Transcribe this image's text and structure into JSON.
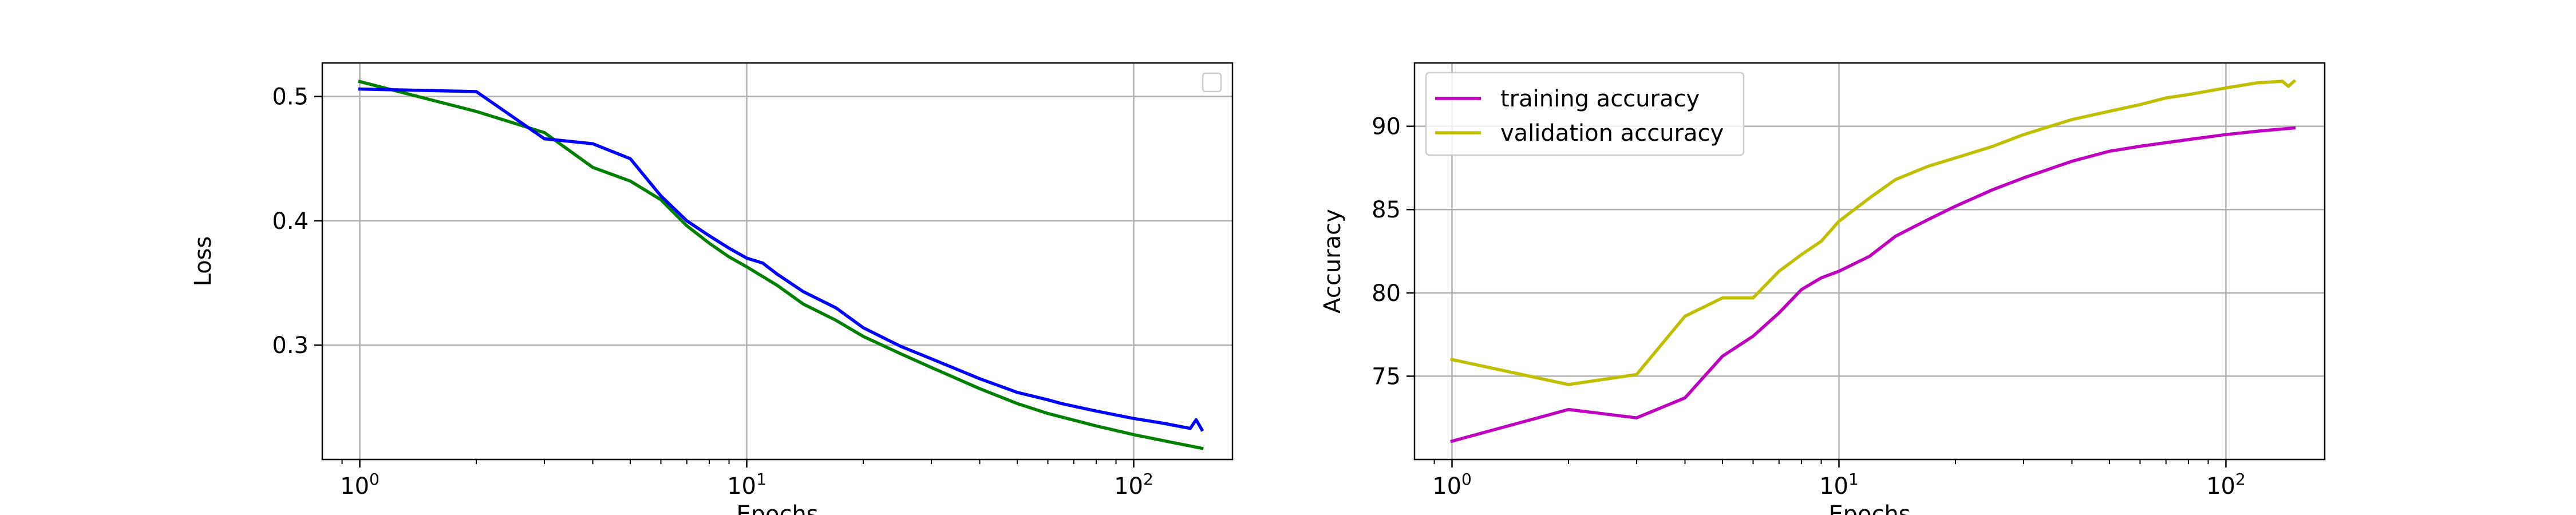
{
  "chart_data": [
    {
      "type": "line",
      "xscale": "log",
      "xlim": [
        0.8,
        180
      ],
      "ylim": [
        0.208,
        0.527
      ],
      "xticks": [
        1,
        10,
        100
      ],
      "xtick_labels": [
        {
          "base": "10",
          "exp": "0"
        },
        {
          "base": "10",
          "exp": "1"
        },
        {
          "base": "10",
          "exp": "2"
        }
      ],
      "yticks": [
        0.3,
        0.4,
        0.5
      ],
      "ytick_labels": [
        "0.3",
        "0.4",
        "0.5"
      ],
      "xlabel": "Epochs",
      "ylabel": "Loss",
      "grid": true,
      "legend": {
        "placement": "top-right",
        "entries": []
      },
      "series": [
        {
          "color": "#008000",
          "x": [
            1,
            2,
            3,
            4,
            5,
            6,
            7,
            8,
            9,
            10,
            12,
            14,
            17,
            20,
            25,
            30,
            40,
            50,
            60,
            80,
            100,
            120,
            150
          ],
          "y": [
            0.512,
            0.488,
            0.471,
            0.443,
            0.432,
            0.417,
            0.396,
            0.382,
            0.371,
            0.363,
            0.348,
            0.333,
            0.32,
            0.307,
            0.293,
            0.282,
            0.265,
            0.253,
            0.245,
            0.235,
            0.228,
            0.223,
            0.217
          ]
        },
        {
          "color": "#0000ff",
          "x": [
            1,
            2,
            3,
            4,
            5,
            6,
            7,
            8,
            9,
            10,
            11,
            12,
            14,
            17,
            20,
            25,
            30,
            40,
            50,
            60,
            65,
            80,
            100,
            120,
            140,
            145,
            150
          ],
          "y": [
            0.506,
            0.504,
            0.466,
            0.462,
            0.45,
            0.42,
            0.4,
            0.388,
            0.378,
            0.37,
            0.366,
            0.357,
            0.343,
            0.33,
            0.314,
            0.299,
            0.289,
            0.273,
            0.262,
            0.256,
            0.253,
            0.247,
            0.241,
            0.237,
            0.233,
            0.24,
            0.232
          ]
        }
      ]
    },
    {
      "type": "line",
      "xscale": "log",
      "xlim": [
        0.8,
        180
      ],
      "ylim": [
        70.0,
        93.8
      ],
      "xticks": [
        1,
        10,
        100
      ],
      "xtick_labels": [
        {
          "base": "10",
          "exp": "0"
        },
        {
          "base": "10",
          "exp": "1"
        },
        {
          "base": "10",
          "exp": "2"
        }
      ],
      "yticks": [
        75,
        80,
        85,
        90
      ],
      "ytick_labels": [
        "75",
        "80",
        "85",
        "90"
      ],
      "xlabel": "Epochs",
      "ylabel": "Accuracy",
      "grid": true,
      "legend": {
        "placement": "top-left",
        "entries": [
          {
            "label": "training accuracy",
            "color": "#bf00bf"
          },
          {
            "label": "validation accuracy",
            "color": "#bfbf00"
          }
        ]
      },
      "series": [
        {
          "name": "training accuracy",
          "color": "#bf00bf",
          "x": [
            1,
            2,
            3,
            4,
            5,
            6,
            7,
            8,
            9,
            10,
            12,
            14,
            17,
            20,
            25,
            30,
            40,
            50,
            60,
            80,
            100,
            120,
            150
          ],
          "y": [
            71.1,
            73.0,
            72.5,
            73.7,
            76.2,
            77.4,
            78.8,
            80.2,
            80.9,
            81.3,
            82.2,
            83.4,
            84.4,
            85.2,
            86.2,
            86.9,
            87.9,
            88.5,
            88.8,
            89.2,
            89.5,
            89.7,
            89.9
          ]
        },
        {
          "name": "validation accuracy",
          "color": "#bfbf00",
          "x": [
            1,
            2,
            3,
            4,
            5,
            6,
            7,
            8,
            9,
            10,
            12,
            14,
            17,
            20,
            25,
            30,
            40,
            50,
            60,
            70,
            80,
            100,
            120,
            140,
            145,
            150
          ],
          "y": [
            76.0,
            74.5,
            75.1,
            78.6,
            79.7,
            79.7,
            81.3,
            82.3,
            83.1,
            84.3,
            85.7,
            86.8,
            87.6,
            88.1,
            88.8,
            89.5,
            90.4,
            90.9,
            91.3,
            91.7,
            91.9,
            92.3,
            92.6,
            92.7,
            92.4,
            92.7
          ]
        }
      ]
    }
  ]
}
